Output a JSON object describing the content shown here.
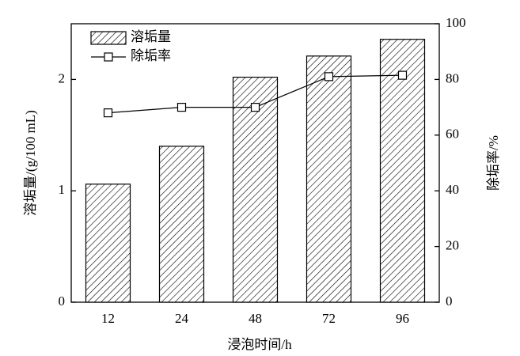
{
  "chart_data": {
    "type": "bar",
    "x_label": "浸泡时间/h",
    "y_label": "溶垢量/(g/100 mL)",
    "y2_label": "除垢率/%",
    "categories": [
      "12",
      "24",
      "48",
      "72",
      "96"
    ],
    "series": [
      {
        "name": "溶垢量",
        "type": "bar",
        "color": "#000000",
        "values": [
          1.06,
          1.4,
          2.02,
          2.21,
          2.36
        ]
      },
      {
        "name": "除垢率",
        "type": "line",
        "axis": "y2",
        "color": "#000000",
        "values": [
          68,
          70,
          70,
          81,
          81.5
        ]
      }
    ],
    "ylim": [
      0,
      2.5
    ],
    "yticks": [
      0,
      1,
      2
    ],
    "y2lim": [
      0,
      100
    ],
    "y2ticks": [
      0,
      20,
      40,
      60,
      80,
      100
    ],
    "legend": "upper-left"
  }
}
